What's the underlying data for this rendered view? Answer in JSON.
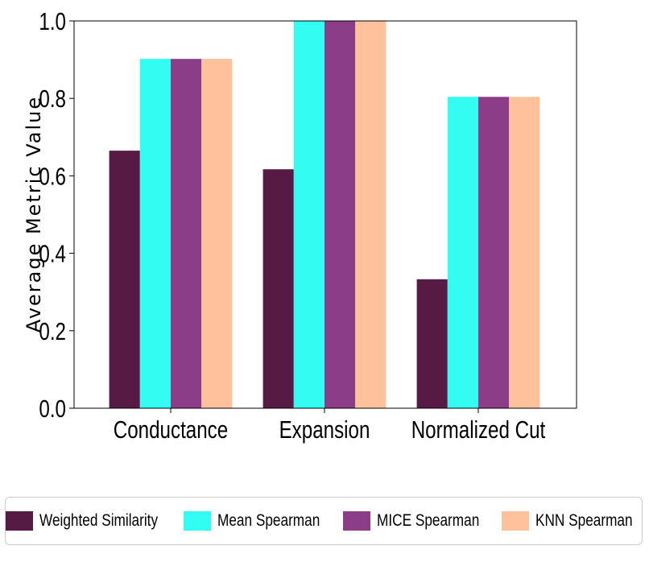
{
  "chart_data": {
    "type": "bar",
    "title": "",
    "xlabel": "",
    "ylabel": "Average Metric Value",
    "categories": [
      "Conductance",
      "Expansion",
      "Normalized Cut"
    ],
    "series": [
      {
        "name": "Weighted Similarity",
        "color": "#561a44",
        "values": [
          0.665,
          0.617,
          0.333
        ]
      },
      {
        "name": "Mean Spearman",
        "color": "#33fdf3",
        "values": [
          0.902,
          1.0,
          0.804
        ]
      },
      {
        "name": "MICE Spearman",
        "color": "#8b3d88",
        "values": [
          0.902,
          1.0,
          0.804
        ]
      },
      {
        "name": "KNN Spearman",
        "color": "#ffc09c",
        "values": [
          0.902,
          1.0,
          0.804
        ]
      }
    ],
    "ylim": [
      0.0,
      1.0
    ],
    "yticks": [
      "0.0",
      "0.2",
      "0.4",
      "0.6",
      "0.8",
      "1.0"
    ],
    "grid": false,
    "legend_position": "bottom"
  }
}
